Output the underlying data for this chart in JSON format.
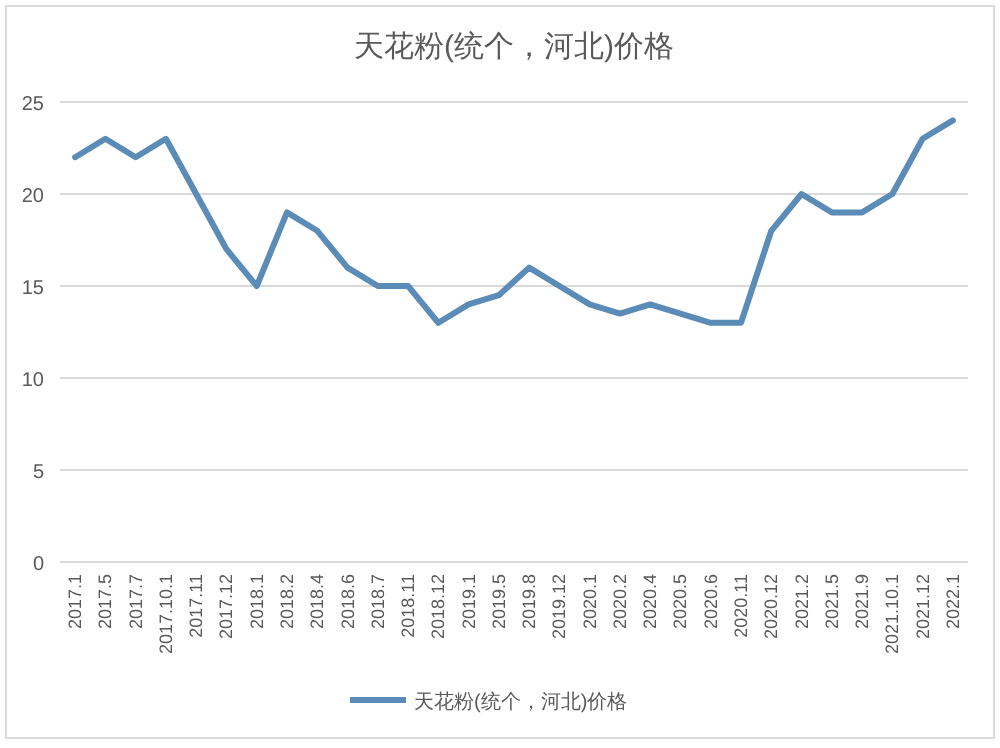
{
  "chart_data": {
    "type": "line",
    "title": "天花粉(统个，河北)价格",
    "categories": [
      "2017.1",
      "2017.5",
      "2017.7",
      "2017.10.1",
      "2017.11",
      "2017.12",
      "2018.1",
      "2018.2",
      "2018.4",
      "2018.6",
      "2018.7",
      "2018.11",
      "2018.12",
      "2019.1",
      "2019.5",
      "2019.8",
      "2019.12",
      "2020.1",
      "2020.2",
      "2020.4",
      "2020.5",
      "2020.6",
      "2020.11",
      "2020.12",
      "2021.2",
      "2021.5",
      "2021.9",
      "2021.10.1",
      "2021.12",
      "2022.1"
    ],
    "series": [
      {
        "name": "天花粉(统个，河北)价格",
        "color": "#5b8cb8",
        "values": [
          22,
          23,
          22,
          23,
          20,
          17,
          15,
          19,
          18,
          16,
          15,
          15,
          13,
          14,
          14.5,
          16,
          15,
          14,
          13.5,
          14,
          13.5,
          13,
          13,
          18,
          20,
          19,
          19,
          20,
          23,
          24
        ]
      }
    ],
    "ylim": [
      0,
      25
    ],
    "yticks": [
      0,
      5,
      10,
      15,
      20,
      25
    ],
    "grid": "y",
    "legend": "bottom",
    "marker": "none",
    "line_style": "solid"
  }
}
